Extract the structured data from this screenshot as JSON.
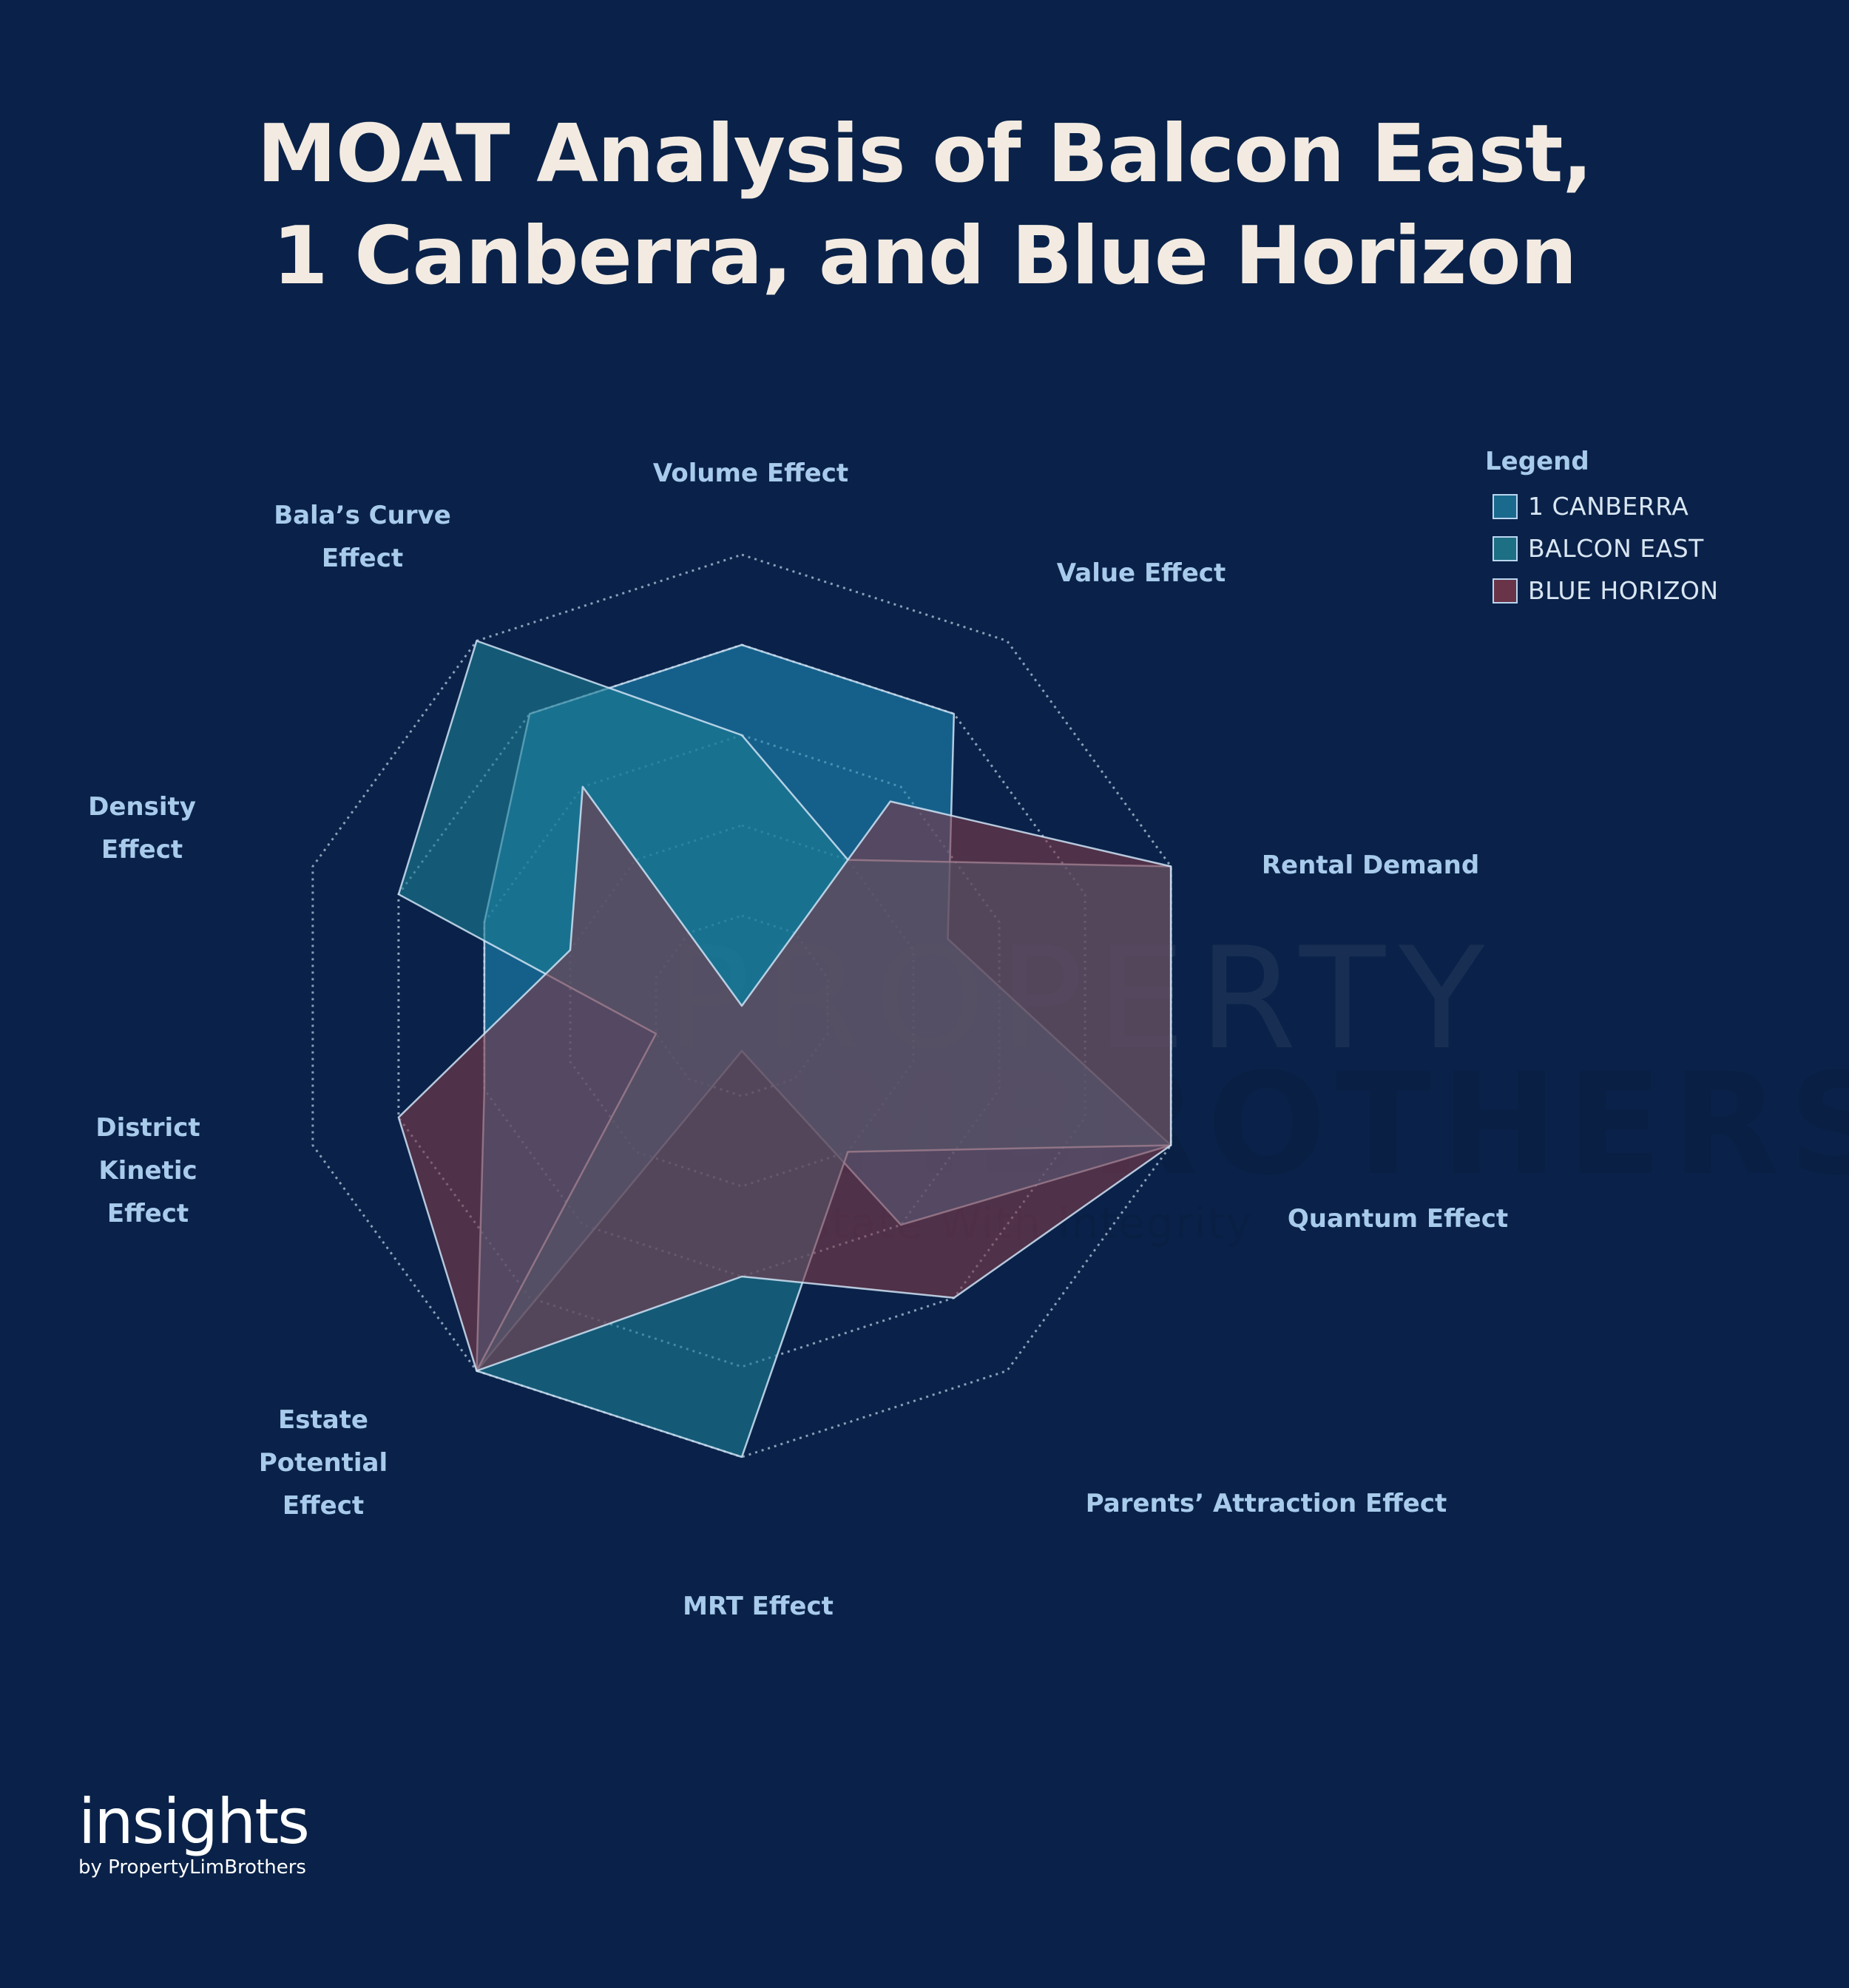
{
  "title": {
    "line1": "MOAT Analysis of Balcon East,",
    "line2": "1 Canberra, and Blue Horizon"
  },
  "chart_data": {
    "type": "radar",
    "axes": [
      "Volume Effect",
      "Value Effect",
      "Rental Demand",
      "Quantum Effect",
      "Parents’ Attraction Effect",
      "MRT Effect",
      "Estate Potential Effect",
      "District Kinetic Effect",
      "Density Effect",
      "Bala’s Curve Effect"
    ],
    "axis_label_lines": [
      [
        "Volume Effect"
      ],
      [
        "Value Effect"
      ],
      [
        "Rental Demand"
      ],
      [
        "Quantum Effect"
      ],
      [
        "Parents’ Attraction Effect"
      ],
      [
        "MRT Effect"
      ],
      [
        "Estate",
        "Potential",
        "Effect"
      ],
      [
        "District",
        "Kinetic",
        "Effect"
      ],
      [
        "Density",
        "Effect"
      ],
      [
        "Bala’s Curve",
        "Effect"
      ]
    ],
    "rlim": [
      0,
      5
    ],
    "grid_rings": 5,
    "grid": true,
    "series": [
      {
        "name": "1 CANBERRA",
        "color": "#1d86b3",
        "values": [
          4,
          4,
          2.4,
          5,
          3,
          0.5,
          5,
          3,
          3,
          4
        ]
      },
      {
        "name": "BALCON EAST",
        "color": "#1b7d95",
        "values": [
          3,
          2,
          5,
          5,
          2,
          5,
          5,
          1,
          4,
          5
        ]
      },
      {
        "name": "BLUE HORIZON",
        "color": "#7a3a4a",
        "values": [
          0,
          2.8,
          5,
          5,
          4,
          3,
          5,
          4,
          2,
          3
        ]
      }
    ]
  },
  "legend": {
    "title": "Legend",
    "position": "top-right",
    "items": [
      {
        "label": "1 CANBERRA",
        "color": "#1a6a8e"
      },
      {
        "label": "BALCON EAST",
        "color": "#1d6f83"
      },
      {
        "label": "BLUE HORIZON",
        "color": "#6a3448"
      }
    ]
  },
  "watermark": {
    "line1": "PROPERTY",
    "line2": "LIMBROTHERS",
    "line3": "Real Estate With Integrity"
  },
  "brand": {
    "name": "insights",
    "sub": "by PropertyLimBrothers"
  }
}
